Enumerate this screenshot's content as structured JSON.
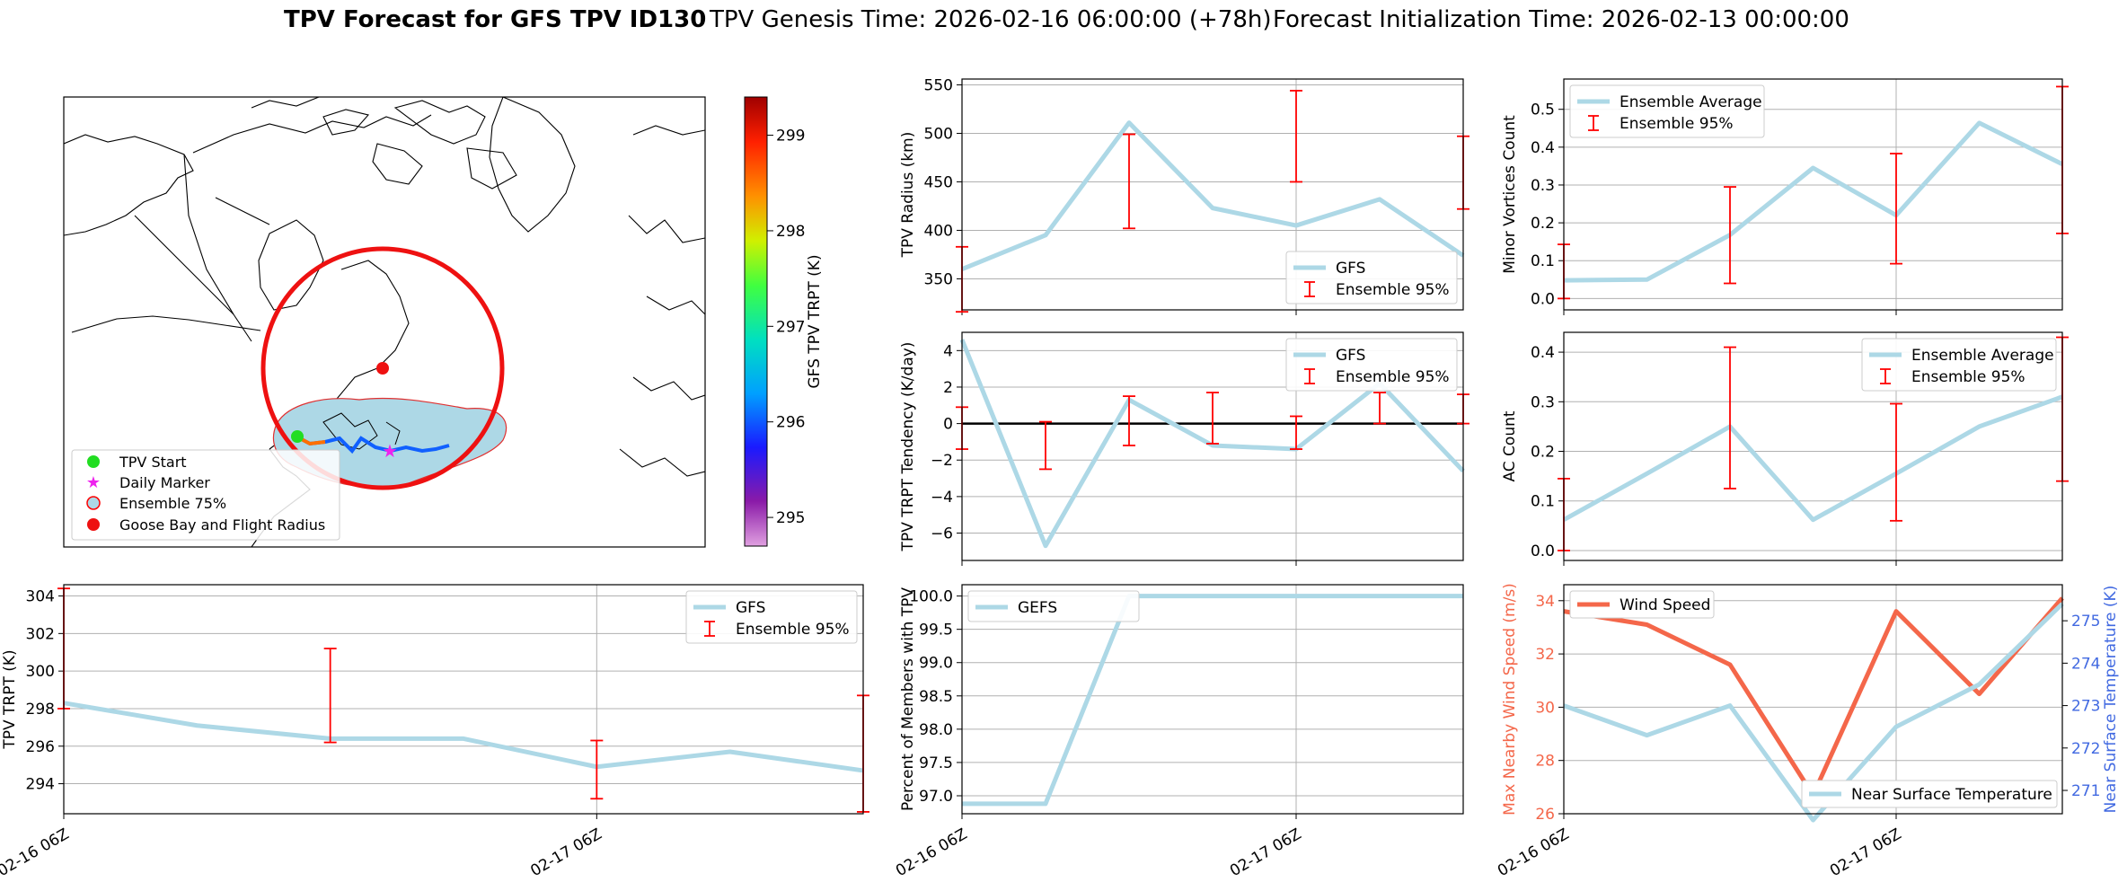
{
  "header": {
    "title_bold": "TPV Forecast for GFS TPV ID130",
    "genesis": "TPV Genesis Time: 2026-02-16 06:00:00 (+78h)",
    "init": "Forecast Initialization Time: 2026-02-13 00:00:00"
  },
  "colors": {
    "gfs_line": "#add8e6",
    "error_bar": "#ff0000",
    "wind": "#f4674a",
    "temp_axis": "#4169e1",
    "circle": "#ee1111",
    "start": "#22dd22",
    "daily": "#ee22ee"
  },
  "map": {
    "legend": [
      "TPV Start",
      "Daily Marker",
      "Ensemble 75%",
      "Goose Bay and Flight Radius"
    ],
    "colorbar": {
      "label": "GFS TPV TRPT (K)",
      "ticks": [
        "299",
        "298",
        "297",
        "296",
        "295"
      ],
      "min": 294.7,
      "max": 299.4
    }
  },
  "chart_data": [
    {
      "id": "radius",
      "type": "line",
      "ylabel": "TPV Radius (km)",
      "ylim": [
        318,
        556
      ],
      "yticks": [
        350,
        400,
        450,
        500,
        550
      ],
      "x": [
        0,
        1,
        2,
        3,
        4,
        5,
        6
      ],
      "series": [
        {
          "name": "GFS",
          "values": [
            360,
            395,
            511,
            423,
            405,
            432,
            374
          ]
        }
      ],
      "error_bars": [
        {
          "x": 0,
          "lo": 316,
          "hi": 383
        },
        {
          "x": 2,
          "lo": 402,
          "hi": 499
        },
        {
          "x": 4,
          "lo": 450,
          "hi": 544
        },
        {
          "x": 6,
          "lo": 422,
          "hi": 497
        }
      ],
      "legend": [
        "GFS",
        "Ensemble 95%"
      ],
      "legend_loc": "lower-right"
    },
    {
      "id": "minor",
      "type": "line",
      "ylabel": "Minor Vortices Count",
      "ylim": [
        -0.03,
        0.58
      ],
      "yticks": [
        "0.0",
        "0.1",
        "0.2",
        "0.3",
        "0.4",
        "0.5"
      ],
      "x": [
        0,
        1,
        2,
        3,
        4,
        5,
        6
      ],
      "series": [
        {
          "name": "Ensemble Average",
          "values": [
            0.048,
            0.05,
            0.168,
            0.345,
            0.22,
            0.464,
            0.355
          ]
        }
      ],
      "error_bars": [
        {
          "x": 0,
          "lo": 0.0,
          "hi": 0.143
        },
        {
          "x": 2,
          "lo": 0.04,
          "hi": 0.295
        },
        {
          "x": 4,
          "lo": 0.092,
          "hi": 0.383
        },
        {
          "x": 6,
          "lo": 0.172,
          "hi": 0.56
        }
      ],
      "legend": [
        "Ensemble Average",
        "Ensemble 95%"
      ],
      "legend_loc": "upper-left"
    },
    {
      "id": "tendency",
      "type": "line",
      "ylabel": "TPV TRPT Tendency (K/day)",
      "ylim": [
        -7.5,
        5.0
      ],
      "yticks": [
        "−6",
        "−4",
        "−2",
        "0",
        "2",
        "4"
      ],
      "x": [
        0,
        1,
        2,
        3,
        4,
        5,
        6
      ],
      "series": [
        {
          "name": "GFS",
          "values": [
            4.6,
            -6.7,
            1.3,
            -1.2,
            -1.4,
            2.2,
            -2.6
          ]
        }
      ],
      "error_bars": [
        {
          "x": 0,
          "lo": -1.4,
          "hi": 0.9
        },
        {
          "x": 1,
          "lo": -2.5,
          "hi": 0.1
        },
        {
          "x": 2,
          "lo": -1.2,
          "hi": 1.5
        },
        {
          "x": 3,
          "lo": -1.1,
          "hi": 1.7
        },
        {
          "x": 4,
          "lo": -1.4,
          "hi": 0.4
        },
        {
          "x": 5,
          "lo": 0.0,
          "hi": 1.7
        },
        {
          "x": 6,
          "lo": 0.0,
          "hi": 1.6
        }
      ],
      "zero_line": true,
      "legend": [
        "GFS",
        "Ensemble 95%"
      ],
      "legend_loc": "upper-right"
    },
    {
      "id": "ac",
      "type": "line",
      "ylabel": "AC Count",
      "ylim": [
        -0.02,
        0.44
      ],
      "yticks": [
        "0.0",
        "0.1",
        "0.2",
        "0.3",
        "0.4"
      ],
      "x": [
        0,
        1,
        2,
        3,
        4,
        5,
        6
      ],
      "series": [
        {
          "name": "Ensemble Average",
          "values": [
            0.062,
            0.155,
            0.25,
            0.062,
            0.155,
            0.25,
            0.31
          ]
        }
      ],
      "error_bars": [
        {
          "x": 0,
          "lo": 0.0,
          "hi": 0.145
        },
        {
          "x": 2,
          "lo": 0.125,
          "hi": 0.41
        },
        {
          "x": 4,
          "lo": 0.06,
          "hi": 0.296
        },
        {
          "x": 6,
          "lo": 0.14,
          "hi": 0.43
        }
      ],
      "legend": [
        "Ensemble Average",
        "Ensemble 95%"
      ],
      "legend_loc": "upper-right"
    },
    {
      "id": "trpt",
      "type": "line",
      "ylabel": "TPV TRPT (K)",
      "ylim": [
        292.4,
        304.6
      ],
      "yticks": [
        294,
        296,
        298,
        300,
        302,
        304
      ],
      "xlim": [
        0,
        6
      ],
      "xticks": [
        {
          "x": 0,
          "label": "02-16 06Z"
        },
        {
          "x": 4,
          "label": "02-17 06Z"
        }
      ],
      "x": [
        0,
        1,
        2,
        3,
        4,
        5,
        6
      ],
      "series": [
        {
          "name": "GFS",
          "values": [
            298.3,
            297.1,
            296.4,
            296.4,
            294.9,
            295.7,
            294.7
          ]
        }
      ],
      "error_bars": [
        {
          "x": 0,
          "lo": 298.0,
          "hi": 304.4
        },
        {
          "x": 2,
          "lo": 296.2,
          "hi": 301.2
        },
        {
          "x": 4,
          "lo": 293.2,
          "hi": 296.3
        },
        {
          "x": 6,
          "lo": 292.5,
          "hi": 298.7
        }
      ],
      "legend": [
        "GFS",
        "Ensemble 95%"
      ],
      "legend_loc": "upper-right"
    },
    {
      "id": "percent",
      "type": "line",
      "ylabel": "Percent of Members with TPV",
      "ylim": [
        96.73,
        100.17
      ],
      "yticks": [
        "97.0",
        "97.5",
        "98.0",
        "98.5",
        "99.0",
        "99.5",
        "100.0"
      ],
      "xlim": [
        0,
        6
      ],
      "xticks": [
        {
          "x": 0,
          "label": "02-16 06Z"
        },
        {
          "x": 4,
          "label": "02-17 06Z"
        }
      ],
      "x": [
        0,
        1,
        2,
        3,
        4,
        5,
        6
      ],
      "series": [
        {
          "name": "GEFS",
          "values": [
            96.88,
            96.88,
            100,
            100,
            100,
            100,
            100
          ]
        }
      ],
      "legend": [
        "GEFS"
      ],
      "legend_loc": "upper-left"
    },
    {
      "id": "wind_temp",
      "type": "line",
      "ylabel": "Max Nearby Wind Speed (m/s)",
      "ylabel_right": "Near Surface Temperature (K)",
      "ylim": [
        26,
        34.6
      ],
      "ylim_right": [
        270.45,
        275.85
      ],
      "yticks": [
        26,
        28,
        30,
        32,
        34
      ],
      "yticks_right": [
        271,
        272,
        273,
        274,
        275
      ],
      "xlim": [
        0,
        6
      ],
      "xticks": [
        {
          "x": 0,
          "label": "02-16 06Z"
        },
        {
          "x": 4,
          "label": "02-17 06Z"
        }
      ],
      "x": [
        0,
        1,
        2,
        3,
        4,
        5,
        6
      ],
      "series": [
        {
          "name": "Wind Speed",
          "axis": "left",
          "values": [
            33.6,
            33.1,
            31.6,
            26.7,
            33.6,
            30.5,
            34.1
          ]
        },
        {
          "name": "Near Surface Temperature",
          "axis": "right",
          "values": [
            273.0,
            272.3,
            273.0,
            270.3,
            272.5,
            273.5,
            275.4
          ]
        }
      ],
      "legend": [
        "Wind Speed",
        "Near Surface Temperature"
      ]
    }
  ]
}
